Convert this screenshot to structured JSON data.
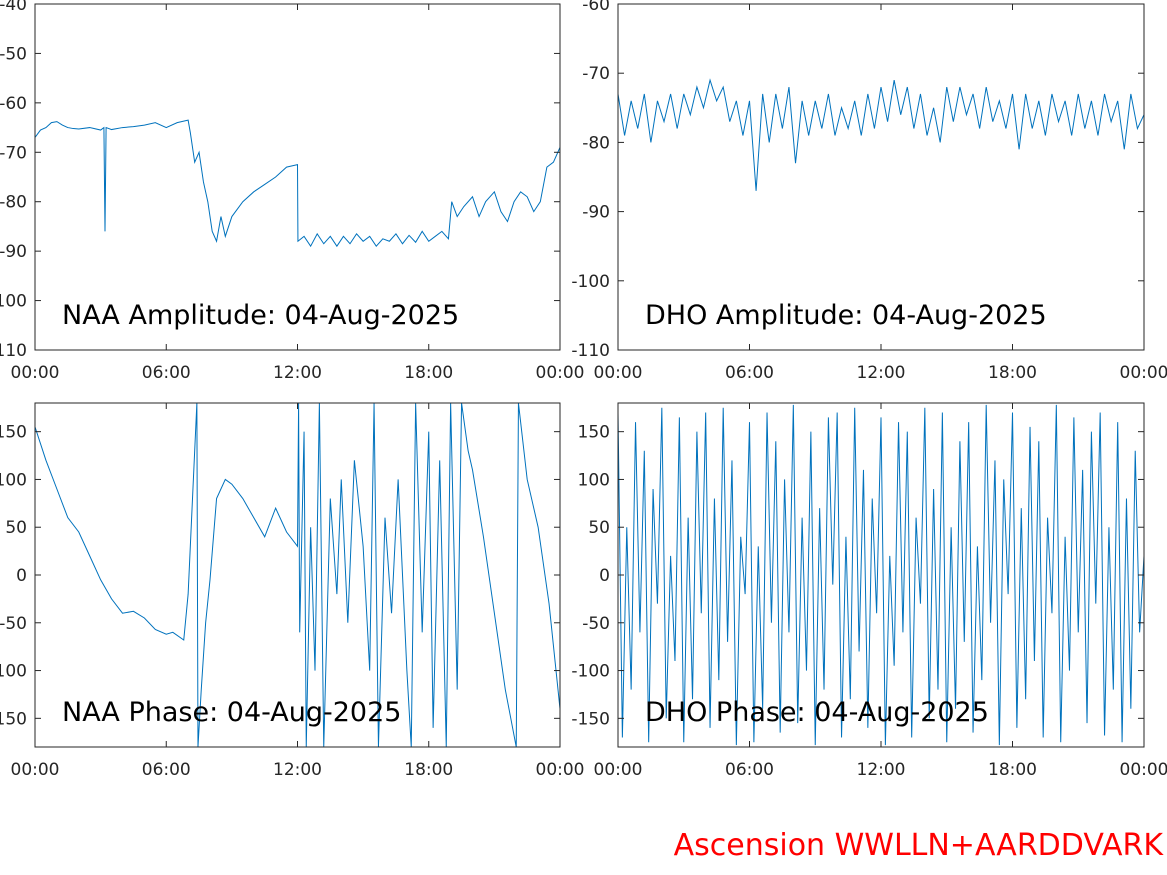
{
  "chart_data": [
    {
      "type": "line",
      "title": "NAA Amplitude: 04-Aug-2025",
      "color": "#0072bd",
      "x": [
        0,
        0.25,
        0.5,
        0.75,
        1,
        1.25,
        1.5,
        1.75,
        2,
        2.5,
        3,
        3.15,
        3.2,
        3.25,
        3.5,
        4,
        4.5,
        5,
        5.5,
        6,
        6.5,
        7,
        7.1,
        7.3,
        7.5,
        7.7,
        7.9,
        8.1,
        8.3,
        8.5,
        8.7,
        9,
        9.5,
        10,
        10.5,
        11,
        11.5,
        12,
        12.02,
        12.3,
        12.6,
        12.9,
        13.2,
        13.5,
        13.8,
        14.1,
        14.4,
        14.7,
        15,
        15.3,
        15.6,
        15.9,
        16.2,
        16.5,
        16.8,
        17.1,
        17.4,
        17.7,
        18,
        18.3,
        18.6,
        18.9,
        19.05,
        19.3,
        19.6,
        20,
        20.3,
        20.6,
        21,
        21.3,
        21.6,
        21.9,
        22.2,
        22.5,
        22.8,
        23.1,
        23.4,
        23.7,
        24
      ],
      "values": [
        -67,
        -65.5,
        -65,
        -64,
        -63.8,
        -64.5,
        -65,
        -65.2,
        -65.3,
        -65,
        -65.5,
        -65,
        -86,
        -65,
        -65.4,
        -65,
        -64.8,
        -64.5,
        -64,
        -65,
        -64,
        -63.5,
        -66,
        -72,
        -70,
        -76,
        -80,
        -86,
        -88,
        -83,
        -87,
        -83,
        -80,
        -78,
        -76.5,
        -75,
        -73,
        -72.5,
        -88,
        -87,
        -89,
        -86.5,
        -88.5,
        -87,
        -89,
        -87,
        -88.5,
        -86.5,
        -88,
        -87,
        -89,
        -87.5,
        -88,
        -86.5,
        -88.5,
        -86.8,
        -88.2,
        -86,
        -88,
        -87,
        -86,
        -87.5,
        -80,
        -83,
        -81,
        -79,
        -83,
        -80,
        -78,
        -82,
        -84,
        -80,
        -78,
        -79,
        -82,
        -80,
        -73,
        -72,
        -69
      ],
      "xlim": [
        0,
        24
      ],
      "xticks": [
        {
          "value": 0,
          "label": "00:00"
        },
        {
          "value": 6,
          "label": "06:00"
        },
        {
          "value": 12,
          "label": "12:00"
        },
        {
          "value": 18,
          "label": "18:00"
        },
        {
          "value": 24,
          "label": "00:00"
        }
      ],
      "ylim": [
        -110,
        -40
      ],
      "yticks": [
        -110,
        -100,
        -90,
        -80,
        -70,
        -60,
        -50,
        -40
      ]
    },
    {
      "type": "line",
      "title": "DHO Amplitude: 04-Aug-2025",
      "color": "#0072bd",
      "x": [
        0,
        0.3,
        0.6,
        0.9,
        1.2,
        1.5,
        1.8,
        2.1,
        2.4,
        2.7,
        3,
        3.3,
        3.6,
        3.9,
        4.2,
        4.5,
        4.8,
        5.1,
        5.4,
        5.7,
        6,
        6.3,
        6.6,
        6.9,
        7.2,
        7.5,
        7.8,
        8.1,
        8.4,
        8.7,
        9,
        9.3,
        9.6,
        9.9,
        10.2,
        10.5,
        10.8,
        11.1,
        11.4,
        11.7,
        12,
        12.3,
        12.6,
        12.9,
        13.2,
        13.5,
        13.8,
        14.1,
        14.4,
        14.7,
        15,
        15.3,
        15.6,
        15.9,
        16.2,
        16.5,
        16.8,
        17.1,
        17.4,
        17.7,
        18,
        18.3,
        18.6,
        18.9,
        19.2,
        19.5,
        19.8,
        20.1,
        20.4,
        20.7,
        21,
        21.3,
        21.6,
        21.9,
        22.2,
        22.5,
        22.8,
        23.1,
        23.4,
        23.7,
        24
      ],
      "values": [
        -73,
        -79,
        -74,
        -78,
        -73,
        -80,
        -74,
        -77,
        -73,
        -78,
        -73,
        -76,
        -72,
        -75,
        -71,
        -74,
        -72,
        -77,
        -74,
        -79,
        -74,
        -87,
        -73,
        -80,
        -73,
        -78,
        -72,
        -83,
        -74,
        -79,
        -74,
        -78,
        -73,
        -79,
        -75,
        -78,
        -74,
        -79,
        -73,
        -78,
        -72,
        -77,
        -71,
        -76,
        -72,
        -78,
        -73,
        -79,
        -75,
        -80,
        -72,
        -77,
        -72,
        -76,
        -73,
        -78,
        -72,
        -77,
        -74,
        -78,
        -73,
        -81,
        -73,
        -78,
        -74,
        -79,
        -73,
        -77,
        -74,
        -79,
        -73,
        -78,
        -74,
        -79,
        -73,
        -77,
        -74,
        -81,
        -73,
        -78,
        -76
      ],
      "xlim": [
        0,
        24
      ],
      "xticks": [
        {
          "value": 0,
          "label": "00:00"
        },
        {
          "value": 6,
          "label": "06:00"
        },
        {
          "value": 12,
          "label": "12:00"
        },
        {
          "value": 18,
          "label": "18:00"
        },
        {
          "value": 24,
          "label": "00:00"
        }
      ],
      "ylim": [
        -110,
        -60
      ],
      "yticks": [
        -110,
        -100,
        -90,
        -80,
        -70,
        -60
      ]
    },
    {
      "type": "line",
      "title": "NAA Phase: 04-Aug-2025",
      "color": "#0072bd",
      "x": [
        0,
        0.5,
        1,
        1.5,
        2,
        2.5,
        3,
        3.5,
        4,
        4.5,
        5,
        5.5,
        6,
        6.3,
        6.8,
        7,
        7.4,
        7.45,
        7.6,
        7.8,
        8,
        8.3,
        8.7,
        9,
        9.5,
        10,
        10.5,
        11,
        11.5,
        12,
        12.05,
        12.1,
        12.3,
        12.4,
        12.6,
        12.8,
        13,
        13.2,
        13.5,
        13.8,
        14,
        14.3,
        14.6,
        15,
        15.3,
        15.5,
        15.7,
        16,
        16.3,
        16.6,
        17,
        17.2,
        17.4,
        17.7,
        18,
        18.2,
        18.5,
        18.8,
        19,
        19.3,
        19.5,
        19.8,
        20,
        20.5,
        21,
        21.5,
        22,
        22.1,
        22.5,
        23,
        23.5,
        24
      ],
      "values": [
        155,
        120,
        90,
        60,
        45,
        20,
        -5,
        -25,
        -40,
        -38,
        -45,
        -57,
        -62,
        -60,
        -68,
        -20,
        180,
        -180,
        -120,
        -50,
        -5,
        80,
        100,
        95,
        80,
        60,
        40,
        70,
        45,
        30,
        180,
        -60,
        150,
        -180,
        50,
        -100,
        180,
        -180,
        80,
        -20,
        100,
        -50,
        120,
        30,
        -100,
        180,
        -180,
        60,
        -40,
        100,
        -100,
        -180,
        180,
        -60,
        150,
        -160,
        120,
        -180,
        180,
        -120,
        180,
        130,
        110,
        40,
        -40,
        -120,
        -180,
        180,
        100,
        50,
        -30,
        -140
      ],
      "xlim": [
        0,
        24
      ],
      "xticks": [
        {
          "value": 0,
          "label": "00:00"
        },
        {
          "value": 6,
          "label": "06:00"
        },
        {
          "value": 12,
          "label": "12:00"
        },
        {
          "value": 18,
          "label": "18:00"
        },
        {
          "value": 24,
          "label": "00:00"
        }
      ],
      "ylim": [
        -180,
        180
      ],
      "yticks": [
        -150,
        -100,
        -50,
        0,
        50,
        100,
        150
      ]
    },
    {
      "type": "line",
      "title": "DHO Phase: 04-Aug-2025",
      "color": "#0072bd",
      "x": [
        0,
        0.2,
        0.4,
        0.6,
        0.8,
        1,
        1.2,
        1.4,
        1.6,
        1.8,
        2,
        2.2,
        2.4,
        2.6,
        2.8,
        3,
        3.2,
        3.4,
        3.6,
        3.8,
        4,
        4.2,
        4.4,
        4.6,
        4.8,
        5,
        5.2,
        5.4,
        5.6,
        5.8,
        6,
        6.2,
        6.4,
        6.6,
        6.8,
        7,
        7.2,
        7.4,
        7.6,
        7.8,
        8,
        8.2,
        8.4,
        8.6,
        8.8,
        9,
        9.2,
        9.4,
        9.6,
        9.8,
        10,
        10.2,
        10.4,
        10.6,
        10.8,
        11,
        11.2,
        11.4,
        11.6,
        11.8,
        12,
        12.2,
        12.4,
        12.6,
        12.8,
        13,
        13.2,
        13.4,
        13.6,
        13.8,
        14,
        14.2,
        14.4,
        14.6,
        14.8,
        15,
        15.2,
        15.4,
        15.6,
        15.8,
        16,
        16.2,
        16.4,
        16.6,
        16.8,
        17,
        17.2,
        17.4,
        17.6,
        17.8,
        18,
        18.2,
        18.4,
        18.6,
        18.8,
        19,
        19.2,
        19.4,
        19.6,
        19.8,
        20,
        20.2,
        20.4,
        20.6,
        20.8,
        21,
        21.2,
        21.4,
        21.6,
        21.8,
        22,
        22.2,
        22.4,
        22.6,
        22.8,
        23,
        23.2,
        23.4,
        23.6,
        23.8,
        24
      ],
      "values": [
        170,
        -170,
        50,
        -120,
        160,
        -60,
        130,
        -175,
        90,
        -30,
        175,
        -150,
        20,
        -90,
        165,
        -175,
        60,
        -130,
        150,
        -40,
        170,
        -160,
        80,
        -110,
        175,
        -70,
        120,
        -178,
        40,
        -20,
        160,
        -175,
        30,
        -140,
        170,
        -50,
        140,
        -165,
        100,
        -60,
        178,
        -155,
        60,
        -100,
        150,
        -178,
        70,
        -120,
        165,
        -10,
        170,
        -170,
        40,
        -130,
        175,
        -80,
        110,
        -160,
        80,
        -40,
        165,
        -178,
        20,
        -95,
        160,
        -60,
        150,
        -170,
        60,
        -30,
        175,
        -150,
        90,
        -120,
        170,
        -175,
        50,
        -140,
        140,
        -70,
        160,
        -165,
        30,
        -110,
        178,
        -50,
        120,
        -178,
        100,
        -20,
        170,
        -160,
        70,
        -130,
        155,
        -90,
        140,
        -170,
        60,
        -40,
        178,
        -175,
        40,
        -100,
        165,
        -60,
        110,
        -155,
        150,
        -30,
        170,
        -168,
        50,
        -120,
        160,
        -175,
        80,
        -140,
        130,
        -60,
        20
      ],
      "xlim": [
        0,
        24
      ],
      "xticks": [
        {
          "value": 0,
          "label": "00:00"
        },
        {
          "value": 6,
          "label": "06:00"
        },
        {
          "value": 12,
          "label": "12:00"
        },
        {
          "value": 18,
          "label": "18:00"
        },
        {
          "value": 24,
          "label": "00:00"
        }
      ],
      "ylim": [
        -180,
        180
      ],
      "yticks": [
        -150,
        -100,
        -50,
        0,
        50,
        100,
        150
      ]
    }
  ],
  "footer": "Ascension WWLLN+AARDDVARK"
}
